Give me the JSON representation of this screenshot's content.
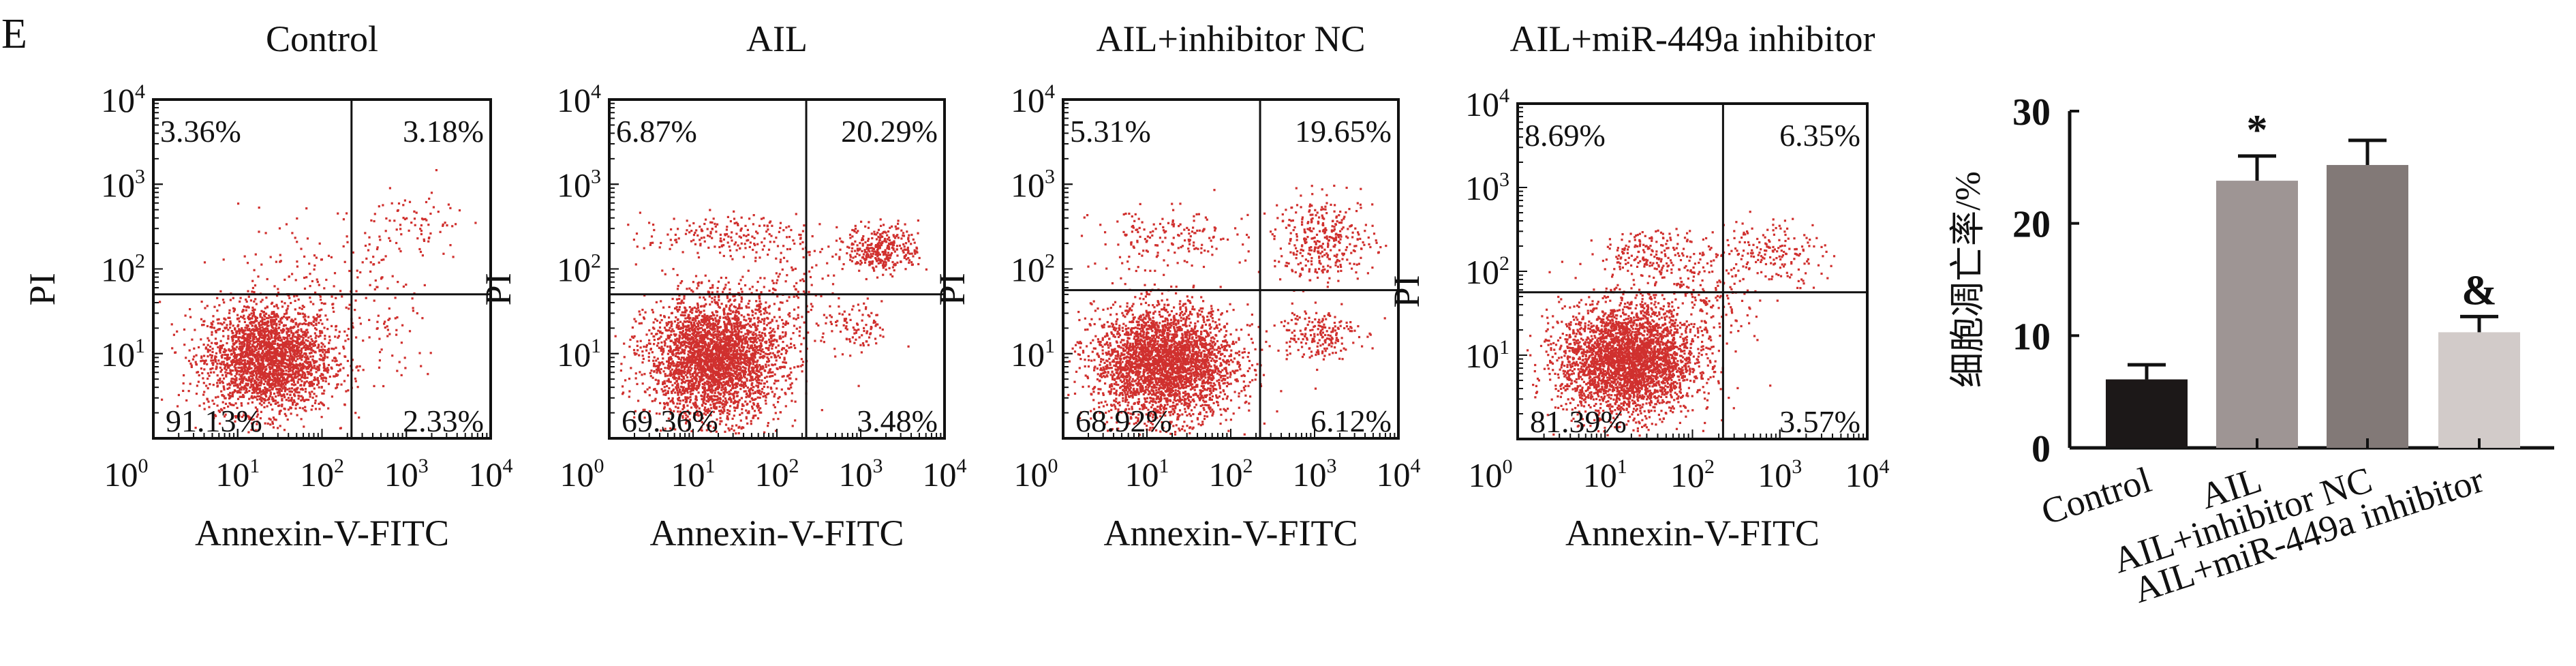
{
  "panel_label": "E",
  "chart_data": [
    {
      "type": "scatter",
      "subtype": "flow-cytometry-quadrant",
      "title": "Control",
      "xlabel": "Annexin-V-FITC",
      "ylabel": "PI",
      "x_ticks": [
        "10^0",
        "10^1",
        "10^2",
        "10^3",
        "10^4"
      ],
      "y_ticks": [
        "10^1",
        "10^2",
        "10^3",
        "10^4"
      ],
      "xlim_log10": [
        0,
        4
      ],
      "ylim_log10": [
        0,
        4
      ],
      "quadrant_gate_log10": {
        "x": 2.35,
        "y": 1.7
      },
      "quadrants": {
        "upper_left": "3.36%",
        "upper_right": "3.18%",
        "lower_left": "91.13%",
        "lower_right": "2.33%"
      },
      "populations": [
        {
          "cx": 1.35,
          "cy": 0.95,
          "sx": 0.38,
          "sy": 0.32,
          "n": 2600
        },
        {
          "cx": 1.9,
          "cy": 1.9,
          "sx": 0.45,
          "sy": 0.4,
          "n": 120
        },
        {
          "cx": 3.1,
          "cy": 2.5,
          "sx": 0.3,
          "sy": 0.25,
          "n": 90
        },
        {
          "cx": 2.8,
          "cy": 1.2,
          "sx": 0.3,
          "sy": 0.35,
          "n": 60
        }
      ],
      "color": "#d0302e"
    },
    {
      "type": "scatter",
      "subtype": "flow-cytometry-quadrant",
      "title": "AIL",
      "xlabel": "Annexin-V-FITC",
      "ylabel": "PI",
      "x_ticks": [
        "10^0",
        "10^1",
        "10^2",
        "10^3",
        "10^4"
      ],
      "y_ticks": [
        "10^1",
        "10^2",
        "10^3",
        "10^4"
      ],
      "xlim_log10": [
        0,
        4
      ],
      "ylim_log10": [
        0,
        4
      ],
      "quadrant_gate_log10": {
        "x": 2.35,
        "y": 1.7
      },
      "quadrants": {
        "upper_left": "6.87%",
        "upper_right": "20.29%",
        "lower_left": "69.36%",
        "lower_right": "3.48%"
      },
      "populations": [
        {
          "cx": 1.25,
          "cy": 0.95,
          "sx": 0.4,
          "sy": 0.35,
          "n": 3200
        },
        {
          "cx": 1.3,
          "cy": 2.4,
          "sx": 0.45,
          "sy": 0.12,
          "n": 180
        },
        {
          "cx": 3.25,
          "cy": 2.25,
          "sx": 0.22,
          "sy": 0.14,
          "n": 350
        },
        {
          "cx": 2.95,
          "cy": 1.3,
          "sx": 0.2,
          "sy": 0.15,
          "n": 90
        },
        {
          "cx": 2.1,
          "cy": 1.7,
          "sx": 0.3,
          "sy": 0.4,
          "n": 150
        }
      ],
      "color": "#d0302e"
    },
    {
      "type": "scatter",
      "subtype": "flow-cytometry-quadrant",
      "title": "AIL+inhibitor NC",
      "xlabel": "Annexin-V-FITC",
      "ylabel": "PI",
      "x_ticks": [
        "10^0",
        "10^1",
        "10^2",
        "10^3",
        "10^4"
      ],
      "y_ticks": [
        "10^1",
        "10^2",
        "10^3",
        "10^4"
      ],
      "xlim_log10": [
        0,
        4
      ],
      "ylim_log10": [
        0,
        4
      ],
      "quadrant_gate_log10": {
        "x": 2.35,
        "y": 1.75
      },
      "quadrants": {
        "upper_left": "5.31%",
        "upper_right": "19.65%",
        "lower_left": "68.92%",
        "lower_right": "6.12%"
      },
      "populations": [
        {
          "cx": 1.2,
          "cy": 0.9,
          "sx": 0.42,
          "sy": 0.33,
          "n": 3200
        },
        {
          "cx": 1.25,
          "cy": 2.35,
          "sx": 0.45,
          "sy": 0.18,
          "n": 170
        },
        {
          "cx": 3.1,
          "cy": 2.35,
          "sx": 0.3,
          "sy": 0.25,
          "n": 350
        },
        {
          "cx": 3.0,
          "cy": 1.25,
          "sx": 0.25,
          "sy": 0.15,
          "n": 200
        }
      ],
      "color": "#d0302e"
    },
    {
      "type": "scatter",
      "subtype": "flow-cytometry-quadrant",
      "title": "AIL+miR-449a inhibitor",
      "xlabel": "Annexin-V-FITC",
      "ylabel": "PI",
      "x_ticks": [
        "10^0",
        "10^1",
        "10^2",
        "10^3",
        "10^4"
      ],
      "y_ticks": [
        "10^1",
        "10^2",
        "10^3",
        "10^4"
      ],
      "xlim_log10": [
        0,
        4
      ],
      "ylim_log10": [
        0,
        4
      ],
      "quadrant_gate_log10": {
        "x": 2.35,
        "y": 1.75
      },
      "quadrants": {
        "upper_left": "8.69%",
        "upper_right": "6.35%",
        "lower_left": "81.39%",
        "lower_right": "3.57%"
      },
      "populations": [
        {
          "cx": 1.25,
          "cy": 0.95,
          "sx": 0.38,
          "sy": 0.33,
          "n": 3300
        },
        {
          "cx": 1.6,
          "cy": 2.2,
          "sx": 0.35,
          "sy": 0.15,
          "n": 220
        },
        {
          "cx": 2.9,
          "cy": 2.25,
          "sx": 0.3,
          "sy": 0.2,
          "n": 180
        },
        {
          "cx": 2.1,
          "cy": 1.55,
          "sx": 0.3,
          "sy": 0.3,
          "n": 160
        }
      ],
      "color": "#d0302e"
    },
    {
      "type": "bar",
      "title": "",
      "xlabel": "",
      "ylabel": "细胞凋亡率/%",
      "ylim": [
        0,
        30
      ],
      "yticks": [
        0,
        10,
        20,
        30
      ],
      "categories": [
        "Control",
        "AIL",
        "AIL+inhibitor NC",
        "AIL+miR-449a inhibitor"
      ],
      "values": [
        6.1,
        23.8,
        25.2,
        10.3
      ],
      "error_upper": [
        7.4,
        26.0,
        27.4,
        11.7
      ],
      "annotations": [
        "",
        "*",
        "",
        "&"
      ],
      "colors": [
        "#1c1818",
        "#9e9594",
        "#827977",
        "#d2cbc9"
      ]
    }
  ]
}
